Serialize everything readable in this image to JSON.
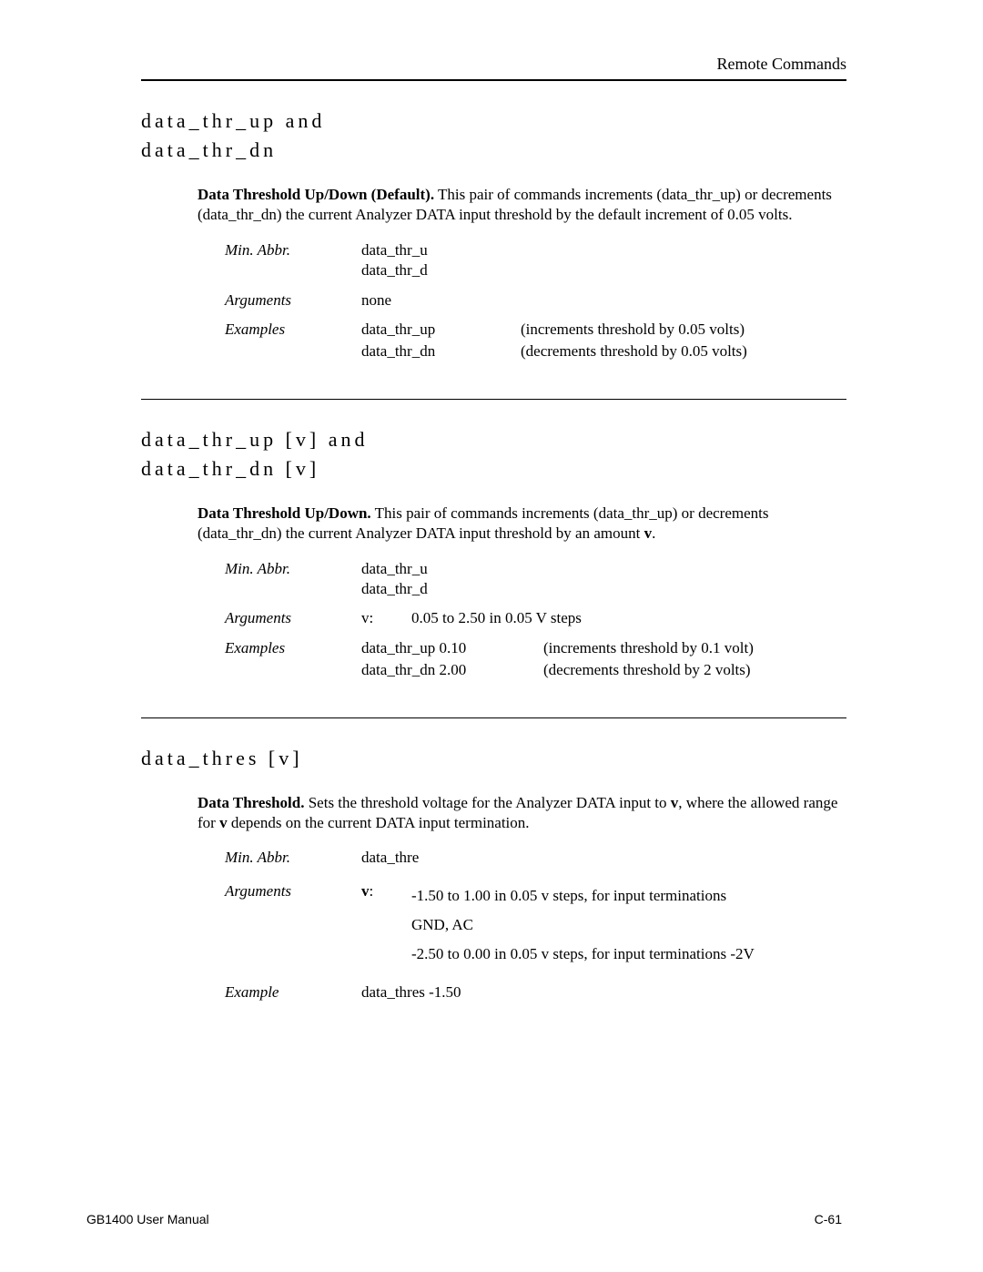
{
  "header": {
    "right": "Remote Commands"
  },
  "section1": {
    "title1": "data_thr_up and",
    "title2": "data_thr_dn",
    "lead_bold": "Data Threshold Up/Down (Default).",
    "lead_rest": "  This pair of commands increments (data_thr_up) or decrements (data_thr_dn) the current Analyzer DATA input threshold by the default increment of 0.05 volts.",
    "labels": {
      "min_abbr": "Min. Abbr.",
      "arguments": "Arguments",
      "examples": "Examples"
    },
    "min_abbr": {
      "l1": "data_thr_u",
      "l2": "data_thr_d"
    },
    "arguments": "none",
    "examples": {
      "c1a": "data_thr_up",
      "c1b": "(increments threshold by 0.05 volts)",
      "c2a": "data_thr_dn",
      "c2b": "(decrements threshold by 0.05 volts)"
    }
  },
  "section2": {
    "title1": "data_thr_up [v] and",
    "title2": "data_thr_dn [v]",
    "lead_bold": "Data Threshold Up/Down.",
    "lead_rest_a": "  This pair of commands increments (data_thr_up) or decrements (data_thr_dn) the current Analyzer DATA input threshold by an amount ",
    "lead_rest_b": "v",
    "lead_rest_c": ".",
    "labels": {
      "min_abbr": "Min. Abbr.",
      "arguments": "Arguments",
      "examples": "Examples"
    },
    "min_abbr": {
      "l1": "data_thr_u",
      "l2": "data_thr_d"
    },
    "arguments": {
      "key": "v:",
      "val": "0.05 to 2.50 in 0.05 V steps"
    },
    "examples": {
      "c1a": "data_thr_up 0.10",
      "c1b": "(increments threshold by 0.1 volt)",
      "c2a": "data_thr_dn 2.00",
      "c2b": "(decrements threshold by 2 volts)"
    }
  },
  "section3": {
    "title": "data_thres [v]",
    "lead_bold": "Data Threshold.",
    "lead_rest_a": "  Sets the threshold voltage for the Analyzer DATA input to ",
    "lead_rest_b": "v",
    "lead_rest_c": ", where the allowed range for ",
    "lead_rest_d": "v",
    "lead_rest_e": " depends on the current DATA input termination.",
    "labels": {
      "min_abbr": "Min. Abbr.",
      "arguments": "Arguments",
      "example": "Example"
    },
    "min_abbr": "data_thre",
    "arguments": {
      "key": "v",
      "colon": ":",
      "l1": "-1.50 to 1.00 in 0.05 v steps, for input terminations",
      "l2": "GND, AC",
      "l3": "-2.50 to 0.00 in 0.05 v steps, for input terminations -2V"
    },
    "example": "data_thres -1.50"
  },
  "footer": {
    "left": "GB1400 User Manual",
    "right": "C-61"
  }
}
